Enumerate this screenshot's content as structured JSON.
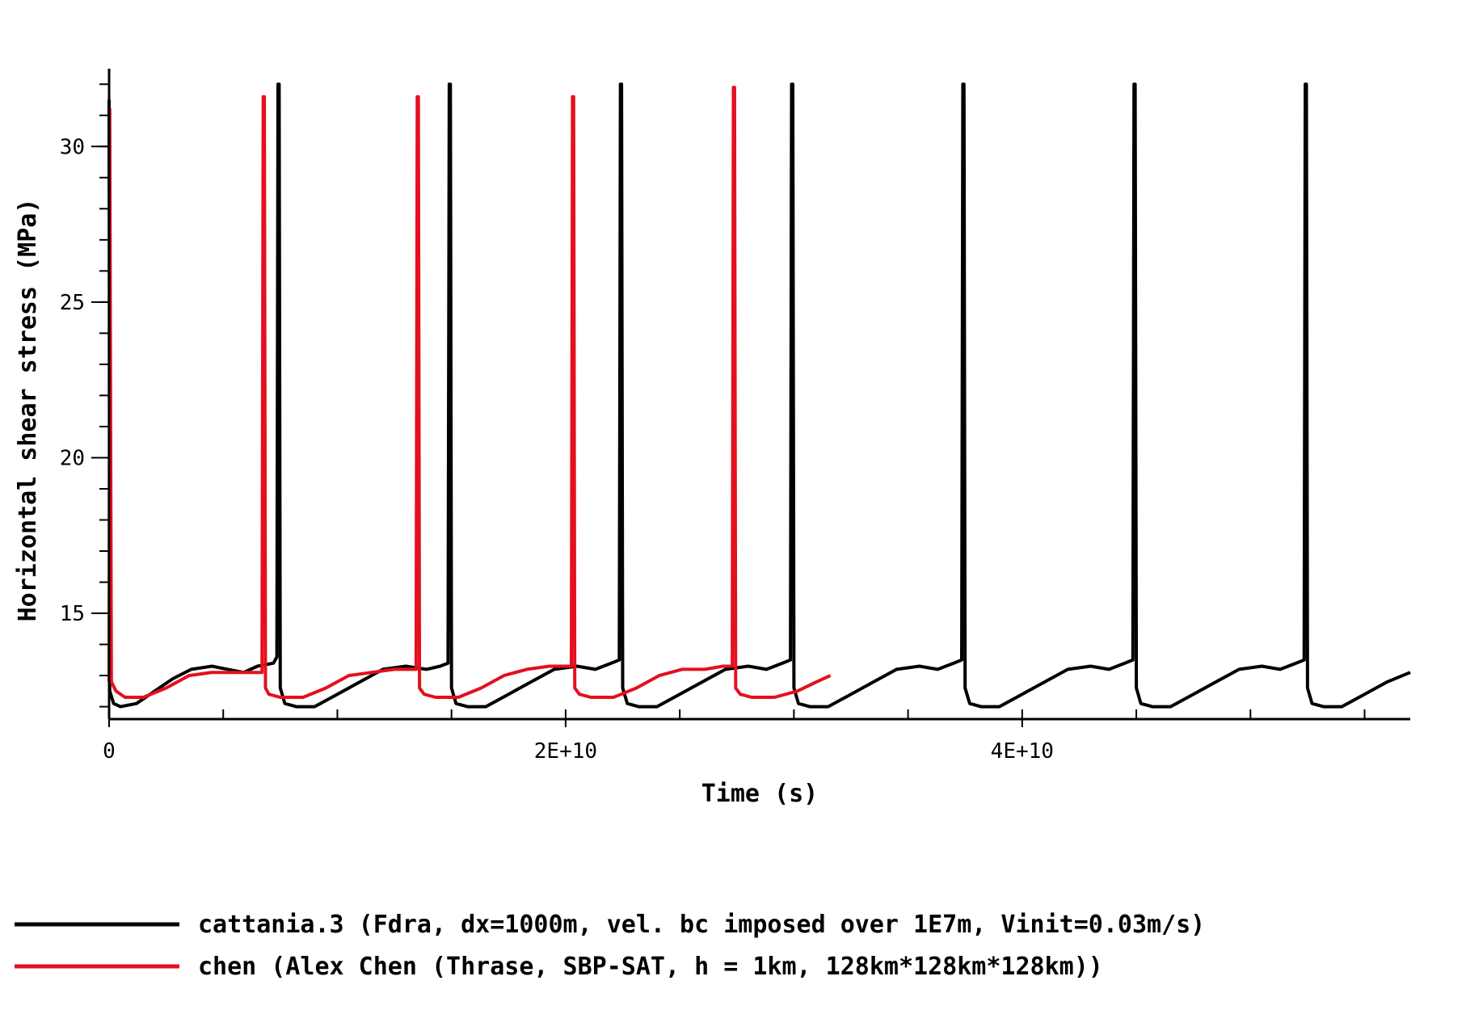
{
  "chart_data": {
    "type": "line",
    "title": "",
    "xlabel": "Time (s)",
    "ylabel": "Horizontal shear stress (MPa)",
    "xlim": [
      0,
      57000000000
    ],
    "ylim": [
      11.6,
      32.5
    ],
    "x_ticks": [
      {
        "value": 0,
        "label": "0"
      },
      {
        "value": 20000000000,
        "label": "2E+10"
      },
      {
        "value": 40000000000,
        "label": "4E+10"
      }
    ],
    "x_minor_step": 5000000000,
    "y_ticks": [
      {
        "value": 15,
        "label": "15"
      },
      {
        "value": 20,
        "label": "20"
      },
      {
        "value": 25,
        "label": "25"
      },
      {
        "value": 30,
        "label": "30"
      }
    ],
    "y_minor_step": 1,
    "grid": false,
    "legend_position": "bottom",
    "series": [
      {
        "name": "cattania.3 (Fdra, dx=1000m, vel. bc imposed over 1E7m, Vinit=0.03m/s)",
        "color": "#000000",
        "x": [
          0,
          30000000,
          200000000,
          500000000,
          1200000000,
          2000000000,
          2800000000,
          3600000000,
          4500000000,
          5200000000,
          5900000000,
          6500000000,
          7200000000,
          7350000000,
          7400000000,
          7450000000,
          7500000000,
          7700000000,
          8200000000,
          9000000000,
          10000000000,
          11000000000,
          12000000000,
          13000000000,
          13900000000,
          14500000000,
          14850000000,
          14900000000,
          14950000000,
          15000000000,
          15200000000,
          15700000000,
          16500000000,
          17500000000,
          18500000000,
          19500000000,
          20500000000,
          21300000000,
          22000000000,
          22350000000,
          22400000000,
          22450000000,
          22500000000,
          22700000000,
          23200000000,
          24000000000,
          25000000000,
          26000000000,
          27000000000,
          28000000000,
          28800000000,
          29500000000,
          29850000000,
          29900000000,
          29950000000,
          30000000000,
          30200000000,
          30700000000,
          31500000000,
          32500000000,
          33500000000,
          34500000000,
          35500000000,
          36300000000,
          37000000000,
          37350000000,
          37400000000,
          37450000000,
          37500000000,
          37700000000,
          38200000000,
          39000000000,
          40000000000,
          41000000000,
          42000000000,
          43000000000,
          43800000000,
          44500000000,
          44850000000,
          44900000000,
          44950000000,
          45000000000,
          45200000000,
          45700000000,
          46500000000,
          47500000000,
          48500000000,
          49500000000,
          50500000000,
          51300000000,
          52000000000,
          52350000000,
          52400000000,
          52450000000,
          52500000000,
          52700000000,
          53200000000,
          54000000000,
          55000000000,
          56000000000,
          57000000000
        ],
        "y": [
          31.5,
          12.5,
          12.1,
          12.0,
          12.1,
          12.5,
          12.9,
          13.2,
          13.3,
          13.2,
          13.1,
          13.3,
          13.4,
          13.6,
          32.0,
          32.0,
          12.6,
          12.1,
          12.0,
          12.0,
          12.4,
          12.8,
          13.2,
          13.3,
          13.2,
          13.3,
          13.4,
          32.0,
          32.0,
          12.6,
          12.1,
          12.0,
          12.0,
          12.4,
          12.8,
          13.2,
          13.3,
          13.2,
          13.4,
          13.5,
          32.0,
          32.0,
          12.6,
          12.1,
          12.0,
          12.0,
          12.4,
          12.8,
          13.2,
          13.3,
          13.2,
          13.4,
          13.5,
          32.0,
          32.0,
          12.6,
          12.1,
          12.0,
          12.0,
          12.4,
          12.8,
          13.2,
          13.3,
          13.2,
          13.4,
          13.5,
          32.0,
          32.0,
          12.6,
          12.1,
          12.0,
          12.0,
          12.4,
          12.8,
          13.2,
          13.3,
          13.2,
          13.4,
          13.5,
          32.0,
          32.0,
          12.6,
          12.1,
          12.0,
          12.0,
          12.4,
          12.8,
          13.2,
          13.3,
          13.2,
          13.4,
          13.5,
          32.0,
          32.0,
          12.6,
          12.1,
          12.0,
          12.0,
          12.4,
          12.8,
          13.1
        ]
      },
      {
        "name": "chen (Alex Chen (Thrase, SBP-SAT, h = 1km, 128km*128km*128km))",
        "color": "#e4101e",
        "x": [
          0,
          30000000,
          100000000,
          300000000,
          700000000,
          1500000000,
          2500000000,
          3500000000,
          4500000000,
          5500000000,
          6500000000,
          6700000000,
          6750000000,
          6800000000,
          6850000000,
          7000000000,
          7500000000,
          8500000000,
          9500000000,
          10500000000,
          11500000000,
          12500000000,
          13200000000,
          13450000000,
          13500000000,
          13550000000,
          13600000000,
          13800000000,
          14300000000,
          15300000000,
          16300000000,
          17300000000,
          18300000000,
          19300000000,
          20000000000,
          20250000000,
          20300000000,
          20350000000,
          20400000000,
          20600000000,
          21100000000,
          22100000000,
          23100000000,
          24100000000,
          25100000000,
          26100000000,
          26900000000,
          27300000000,
          27350000000,
          27400000000,
          27450000000,
          27650000000,
          28150000000,
          29150000000,
          30150000000,
          31000000000,
          31600000000
        ],
        "y": [
          12.8,
          31.2,
          12.8,
          12.5,
          12.3,
          12.3,
          12.6,
          13.0,
          13.1,
          13.1,
          13.1,
          13.1,
          31.6,
          31.6,
          12.6,
          12.4,
          12.3,
          12.3,
          12.6,
          13.0,
          13.1,
          13.2,
          13.2,
          13.2,
          31.6,
          31.6,
          12.6,
          12.4,
          12.3,
          12.3,
          12.6,
          13.0,
          13.2,
          13.3,
          13.3,
          13.3,
          31.6,
          31.6,
          12.6,
          12.4,
          12.3,
          12.3,
          12.6,
          13.0,
          13.2,
          13.2,
          13.3,
          13.3,
          31.9,
          31.9,
          12.6,
          12.4,
          12.3,
          12.3,
          12.5,
          12.8,
          13.0
        ]
      }
    ]
  }
}
